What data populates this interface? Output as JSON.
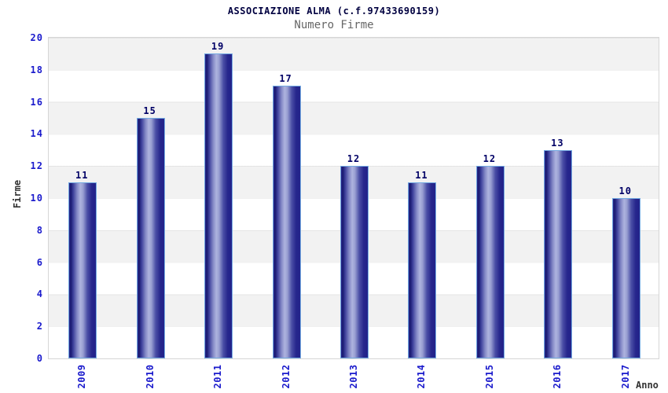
{
  "header": {
    "title": "ASSOCIAZIONE ALMA (c.f.97433690159)",
    "subtitle": "Numero Firme"
  },
  "chart_data": {
    "type": "bar",
    "title": "ASSOCIAZIONE ALMA (c.f.97433690159)",
    "subtitle": "Numero Firme",
    "categories": [
      "2009",
      "2010",
      "2011",
      "2012",
      "2013",
      "2014",
      "2015",
      "2016",
      "2017"
    ],
    "values": [
      11,
      15,
      19,
      17,
      12,
      11,
      12,
      13,
      10
    ],
    "xlabel": "Anno",
    "ylabel": "Firme",
    "ylim": [
      0,
      20
    ],
    "yticks": [
      0,
      2,
      4,
      6,
      8,
      10,
      12,
      14,
      16,
      18,
      20
    ],
    "grid": "horizontal alternating bands with gridlines every 2 units",
    "legend": "none",
    "bar_value_labels_shown": true,
    "x_tick_rotation_degrees": -90,
    "colors": {
      "title": "#000040",
      "subtitle": "#666666",
      "tick_label": "#1a1acc",
      "value_label": "#000066",
      "axis_title": "#333333",
      "bar_gradient_dark": "#19196f",
      "bar_gradient_light": "#aeb3de",
      "bar_border": "#74aae2",
      "band_gray": "#f2f2f2",
      "band_white": "#ffffff",
      "plot_border": "#d6d6d6"
    }
  }
}
